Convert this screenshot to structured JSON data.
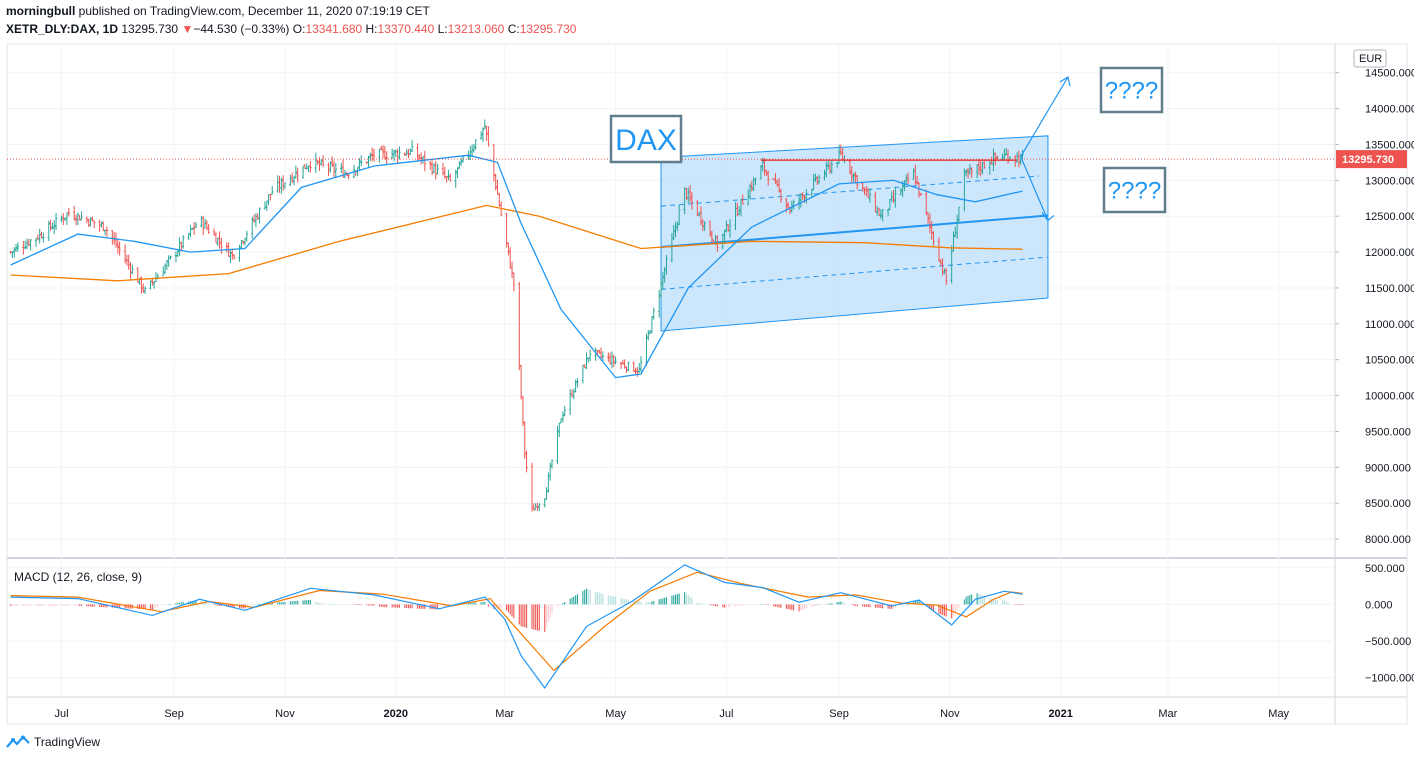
{
  "header": {
    "author": "morningbull",
    "published_text": "published on TradingView.com, December 11, 2020 07:19:19 CET",
    "symbol": "XETR_DLY:DAX, 1D",
    "last": "13295.730",
    "arrow": "▼",
    "change": "−44.530 (−0.33%)",
    "o_label": "O:",
    "o": "13341.680",
    "h_label": "H:",
    "h": "13370.440",
    "l_label": "L:",
    "l": "13213.060",
    "c_label": "C:",
    "c": "13295.730"
  },
  "brand": "TradingView",
  "colors": {
    "up": "#26a69a",
    "down": "#ef5350",
    "ma_fast": "#2196f3",
    "ma_slow": "#f57c00",
    "channel_fill": "#bbdefb",
    "channel_line": "#2196f3",
    "resistance": "#e53935",
    "callout": "#607d8b"
  },
  "chart_data": [
    {
      "type": "candlestick",
      "currency": "EUR",
      "last_price_label": "13295.730",
      "y_ticks": [
        "14500.000",
        "14000.000",
        "13500.000",
        "13000.000",
        "12500.000",
        "12000.000",
        "11500.000",
        "11000.000",
        "10500.000",
        "10000.000",
        "9500.000",
        "9000.000",
        "8500.000",
        "8000.000"
      ],
      "ylim": [
        7750,
        14900
      ],
      "x_ticks": [
        "Jul",
        "Sep",
        "Nov",
        "2020",
        "Mar",
        "May",
        "Jul",
        "Sep",
        "Nov",
        "2021",
        "Mar",
        "May"
      ],
      "price_path": [
        [
          "2019-06-03",
          12000
        ],
        [
          "2019-06-20",
          12250
        ],
        [
          "2019-07-05",
          12550
        ],
        [
          "2019-07-25",
          12350
        ],
        [
          "2019-08-10",
          11700
        ],
        [
          "2019-08-16",
          11450
        ],
        [
          "2019-08-30",
          11900
        ],
        [
          "2019-09-15",
          12450
        ],
        [
          "2019-10-03",
          11950
        ],
        [
          "2019-10-25",
          12850
        ],
        [
          "2019-11-15",
          13250
        ],
        [
          "2019-12-05",
          13100
        ],
        [
          "2019-12-20",
          13350
        ],
        [
          "2020-01-10",
          13400
        ],
        [
          "2020-01-31",
          12980
        ],
        [
          "2020-02-19",
          13750
        ],
        [
          "2020-02-26",
          12800
        ],
        [
          "2020-03-06",
          11550
        ],
        [
          "2020-03-12",
          9200
        ],
        [
          "2020-03-16",
          8400
        ],
        [
          "2020-03-23",
          8600
        ],
        [
          "2020-04-01",
          9700
        ],
        [
          "2020-04-17",
          10600
        ],
        [
          "2020-05-14",
          10350
        ],
        [
          "2020-06-08",
          12850
        ],
        [
          "2020-06-26",
          12100
        ],
        [
          "2020-07-21",
          13200
        ],
        [
          "2020-08-05",
          12600
        ],
        [
          "2020-09-02",
          13350
        ],
        [
          "2020-09-24",
          12500
        ],
        [
          "2020-10-12",
          13100
        ],
        [
          "2020-10-30",
          11600
        ],
        [
          "2020-11-09",
          13050
        ],
        [
          "2020-11-25",
          13300
        ],
        [
          "2020-12-04",
          13350
        ],
        [
          "2020-12-11",
          13295
        ]
      ],
      "ma_fast": [
        [
          "2019-06-03",
          11820
        ],
        [
          "2019-07-10",
          12250
        ],
        [
          "2019-08-10",
          12150
        ],
        [
          "2019-09-10",
          12000
        ],
        [
          "2019-10-10",
          12050
        ],
        [
          "2019-11-10",
          12900
        ],
        [
          "2019-12-20",
          13200
        ],
        [
          "2020-02-10",
          13350
        ],
        [
          "2020-02-26",
          13250
        ],
        [
          "2020-03-10",
          12400
        ],
        [
          "2020-04-01",
          11200
        ],
        [
          "2020-05-01",
          10250
        ],
        [
          "2020-05-15",
          10300
        ],
        [
          "2020-06-10",
          11500
        ],
        [
          "2020-07-15",
          12350
        ],
        [
          "2020-09-01",
          12950
        ],
        [
          "2020-10-01",
          13000
        ],
        [
          "2020-10-25",
          12800
        ],
        [
          "2020-11-15",
          12700
        ],
        [
          "2020-12-11",
          12850
        ]
      ],
      "ma_slow": [
        [
          "2019-06-03",
          11680
        ],
        [
          "2019-08-01",
          11600
        ],
        [
          "2019-10-01",
          11700
        ],
        [
          "2019-12-01",
          12150
        ],
        [
          "2020-02-20",
          12650
        ],
        [
          "2020-03-20",
          12500
        ],
        [
          "2020-05-15",
          12050
        ],
        [
          "2020-07-15",
          12150
        ],
        [
          "2020-09-15",
          12130
        ],
        [
          "2020-11-01",
          12060
        ],
        [
          "2020-12-11",
          12040
        ]
      ],
      "annotations": [
        "DAX",
        "????",
        "????"
      ]
    },
    {
      "type": "macd",
      "title": "MACD (12, 26, close, 9)",
      "y_ticks": [
        "500.000",
        "0.000",
        "−500.000",
        "−1000.000"
      ],
      "ylim": [
        -1250,
        620
      ],
      "macd_line": [
        [
          "2019-06-03",
          100
        ],
        [
          "2019-07-10",
          80
        ],
        [
          "2019-08-20",
          -150
        ],
        [
          "2019-09-15",
          70
        ],
        [
          "2019-10-10",
          -80
        ],
        [
          "2019-11-15",
          220
        ],
        [
          "2019-12-20",
          130
        ],
        [
          "2020-01-25",
          -60
        ],
        [
          "2020-02-19",
          100
        ],
        [
          "2020-03-01",
          -200
        ],
        [
          "2020-03-10",
          -700
        ],
        [
          "2020-03-23",
          -1140
        ],
        [
          "2020-04-15",
          -300
        ],
        [
          "2020-05-10",
          40
        ],
        [
          "2020-06-08",
          540
        ],
        [
          "2020-06-30",
          300
        ],
        [
          "2020-07-21",
          230
        ],
        [
          "2020-08-10",
          30
        ],
        [
          "2020-09-02",
          160
        ],
        [
          "2020-09-30",
          -20
        ],
        [
          "2020-10-15",
          60
        ],
        [
          "2020-11-02",
          -280
        ],
        [
          "2020-11-15",
          70
        ],
        [
          "2020-12-01",
          180
        ],
        [
          "2020-12-11",
          140
        ]
      ],
      "signal_line": [
        [
          "2019-06-03",
          120
        ],
        [
          "2019-07-10",
          100
        ],
        [
          "2019-08-25",
          -100
        ],
        [
          "2019-09-20",
          40
        ],
        [
          "2019-10-15",
          -40
        ],
        [
          "2019-11-20",
          190
        ],
        [
          "2019-12-25",
          140
        ],
        [
          "2020-02-01",
          -20
        ],
        [
          "2020-02-22",
          80
        ],
        [
          "2020-03-10",
          -400
        ],
        [
          "2020-03-28",
          -900
        ],
        [
          "2020-04-25",
          -300
        ],
        [
          "2020-05-20",
          180
        ],
        [
          "2020-06-15",
          440
        ],
        [
          "2020-07-10",
          280
        ],
        [
          "2020-08-15",
          100
        ],
        [
          "2020-09-10",
          130
        ],
        [
          "2020-10-05",
          20
        ],
        [
          "2020-10-25",
          -10
        ],
        [
          "2020-11-10",
          -170
        ],
        [
          "2020-11-25",
          70
        ],
        [
          "2020-12-05",
          170
        ],
        [
          "2020-12-11",
          150
        ]
      ]
    }
  ]
}
